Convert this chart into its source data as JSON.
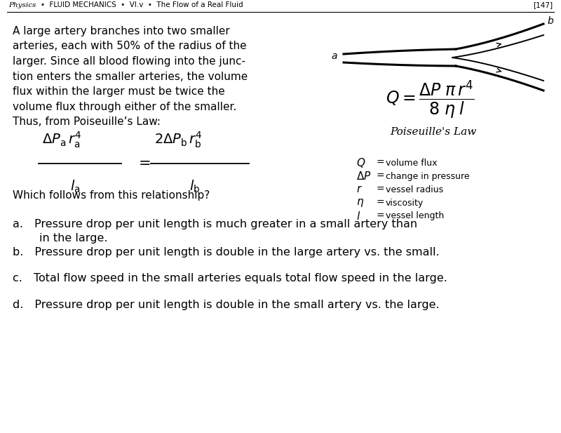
{
  "background_color": "#ffffff",
  "font_color": "#000000",
  "header_physics": "Physics",
  "header_rest": "•  FLUID MECHANICS  •  VI.v  •  The Flow of a Real Fluid",
  "page_number": "[147]",
  "problem_text_lines": [
    "A large artery branches into two smaller",
    "arteries, each with 50% of the radius of the",
    "larger. Since all blood flowing into the junc-",
    "tion enters the smaller arteries, the volume",
    "flux within the larger must be twice the",
    "volume flux through either of the smaller.",
    "Thus, from Poiseuille’s Law:"
  ],
  "follow_text": "Which follows from this relationship?",
  "poiseuille_law_label": "Poiseuille’s Law",
  "legend_items": [
    [
      "Q",
      "volume flux"
    ],
    [
      "ΔP",
      "change in pressure"
    ],
    [
      "r",
      "vessel radius"
    ],
    [
      "η",
      "viscosity"
    ],
    [
      "l",
      "vessel length"
    ]
  ],
  "choice_a_line1": "a. Pressure drop per unit length is much greater in a small artery than",
  "choice_a_line2": "in the large.",
  "choice_b": "b. Pressure drop per unit length is double in the large artery vs. the small.",
  "choice_c": "c. Total flow speed in the small arteries equals total flow speed in the large.",
  "choice_d": "d. Pressure drop per unit length is double in the small artery vs. the large."
}
